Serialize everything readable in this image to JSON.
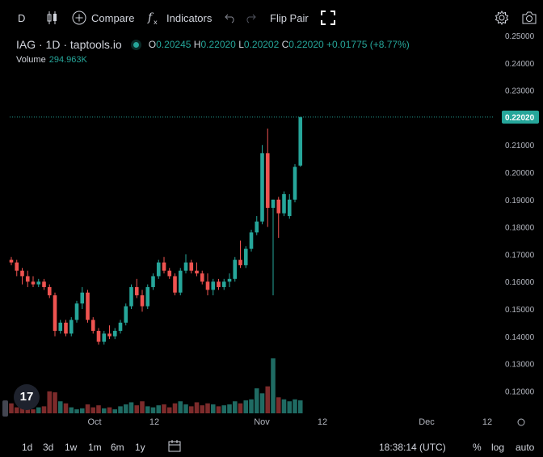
{
  "toolbar": {
    "interval": "D",
    "compare_label": "Compare",
    "indicators_label": "Indicators",
    "flip_pair_label": "Flip Pair"
  },
  "legend": {
    "symbol": "IAG · 1D · taptools.io",
    "o_label": "O",
    "o_value": "0.20245",
    "h_label": "H",
    "h_value": "0.22020",
    "l_label": "L",
    "l_value": "0.20202",
    "c_label": "C",
    "c_value": "0.22020",
    "change": "+0.01775 (+8.77%)",
    "volume_label": "Volume",
    "volume_value": "294.963K"
  },
  "colors": {
    "up": "#26a69a",
    "down": "#ef5350",
    "up_vol": "#1f6b63",
    "down_vol": "#7d2b2b"
  },
  "chart_data": {
    "type": "candlestick",
    "price_axis_ticks": [
      "0.25000",
      "0.24000",
      "0.23000",
      "0.22000",
      "0.21000",
      "0.20000",
      "0.19000",
      "0.18000",
      "0.17000",
      "0.16000",
      "0.15000",
      "0.14000",
      "0.13000",
      "0.12000"
    ],
    "last_price": "0.22020",
    "time_axis_ticks": [
      "Oct",
      "12",
      "Nov",
      "12",
      "Dec",
      "12"
    ],
    "candles": [
      {
        "o": 0.168,
        "h": 0.169,
        "l": 0.166,
        "c": 0.167
      },
      {
        "o": 0.167,
        "h": 0.168,
        "l": 0.162,
        "c": 0.164
      },
      {
        "o": 0.164,
        "h": 0.165,
        "l": 0.159,
        "c": 0.162
      },
      {
        "o": 0.162,
        "h": 0.164,
        "l": 0.158,
        "c": 0.16
      },
      {
        "o": 0.16,
        "h": 0.162,
        "l": 0.158,
        "c": 0.159
      },
      {
        "o": 0.159,
        "h": 0.161,
        "l": 0.158,
        "c": 0.16
      },
      {
        "o": 0.16,
        "h": 0.161,
        "l": 0.157,
        "c": 0.158
      },
      {
        "o": 0.158,
        "h": 0.159,
        "l": 0.154,
        "c": 0.155
      },
      {
        "o": 0.155,
        "h": 0.156,
        "l": 0.14,
        "c": 0.142
      },
      {
        "o": 0.142,
        "h": 0.146,
        "l": 0.141,
        "c": 0.145
      },
      {
        "o": 0.145,
        "h": 0.146,
        "l": 0.14,
        "c": 0.141
      },
      {
        "o": 0.141,
        "h": 0.147,
        "l": 0.14,
        "c": 0.146
      },
      {
        "o": 0.146,
        "h": 0.153,
        "l": 0.145,
        "c": 0.152
      },
      {
        "o": 0.152,
        "h": 0.158,
        "l": 0.15,
        "c": 0.156
      },
      {
        "o": 0.156,
        "h": 0.157,
        "l": 0.145,
        "c": 0.146
      },
      {
        "o": 0.146,
        "h": 0.147,
        "l": 0.141,
        "c": 0.142
      },
      {
        "o": 0.142,
        "h": 0.143,
        "l": 0.137,
        "c": 0.138
      },
      {
        "o": 0.138,
        "h": 0.142,
        "l": 0.137,
        "c": 0.141
      },
      {
        "o": 0.141,
        "h": 0.144,
        "l": 0.139,
        "c": 0.14
      },
      {
        "o": 0.14,
        "h": 0.143,
        "l": 0.139,
        "c": 0.142
      },
      {
        "o": 0.142,
        "h": 0.146,
        "l": 0.141,
        "c": 0.145
      },
      {
        "o": 0.145,
        "h": 0.152,
        "l": 0.144,
        "c": 0.151
      },
      {
        "o": 0.151,
        "h": 0.159,
        "l": 0.15,
        "c": 0.158
      },
      {
        "o": 0.158,
        "h": 0.161,
        "l": 0.154,
        "c": 0.155
      },
      {
        "o": 0.155,
        "h": 0.157,
        "l": 0.149,
        "c": 0.151
      },
      {
        "o": 0.151,
        "h": 0.159,
        "l": 0.15,
        "c": 0.158
      },
      {
        "o": 0.158,
        "h": 0.163,
        "l": 0.157,
        "c": 0.162
      },
      {
        "o": 0.162,
        "h": 0.168,
        "l": 0.161,
        "c": 0.167
      },
      {
        "o": 0.167,
        "h": 0.169,
        "l": 0.163,
        "c": 0.164
      },
      {
        "o": 0.164,
        "h": 0.165,
        "l": 0.161,
        "c": 0.162
      },
      {
        "o": 0.162,
        "h": 0.163,
        "l": 0.155,
        "c": 0.156
      },
      {
        "o": 0.156,
        "h": 0.165,
        "l": 0.155,
        "c": 0.164
      },
      {
        "o": 0.164,
        "h": 0.17,
        "l": 0.163,
        "c": 0.167
      },
      {
        "o": 0.167,
        "h": 0.168,
        "l": 0.163,
        "c": 0.164
      },
      {
        "o": 0.164,
        "h": 0.167,
        "l": 0.162,
        "c": 0.163
      },
      {
        "o": 0.163,
        "h": 0.164,
        "l": 0.159,
        "c": 0.16
      },
      {
        "o": 0.16,
        "h": 0.163,
        "l": 0.155,
        "c": 0.157
      },
      {
        "o": 0.157,
        "h": 0.161,
        "l": 0.155,
        "c": 0.16
      },
      {
        "o": 0.16,
        "h": 0.161,
        "l": 0.157,
        "c": 0.158
      },
      {
        "o": 0.158,
        "h": 0.161,
        "l": 0.157,
        "c": 0.16
      },
      {
        "o": 0.16,
        "h": 0.163,
        "l": 0.158,
        "c": 0.161
      },
      {
        "o": 0.161,
        "h": 0.169,
        "l": 0.16,
        "c": 0.168
      },
      {
        "o": 0.168,
        "h": 0.175,
        "l": 0.165,
        "c": 0.166
      },
      {
        "o": 0.166,
        "h": 0.173,
        "l": 0.165,
        "c": 0.172
      },
      {
        "o": 0.172,
        "h": 0.179,
        "l": 0.171,
        "c": 0.178
      },
      {
        "o": 0.178,
        "h": 0.184,
        "l": 0.177,
        "c": 0.182
      },
      {
        "o": 0.182,
        "h": 0.21,
        "l": 0.181,
        "c": 0.207
      },
      {
        "o": 0.207,
        "h": 0.216,
        "l": 0.18,
        "c": 0.187
      },
      {
        "o": 0.187,
        "h": 0.19,
        "l": 0.155,
        "c": 0.19
      },
      {
        "o": 0.19,
        "h": 0.191,
        "l": 0.176,
        "c": 0.185
      },
      {
        "o": 0.185,
        "h": 0.193,
        "l": 0.184,
        "c": 0.192
      },
      {
        "o": 0.184,
        "h": 0.192,
        "l": 0.183,
        "c": 0.19
      },
      {
        "o": 0.19,
        "h": 0.203,
        "l": 0.189,
        "c": 0.202
      },
      {
        "o": 0.20245,
        "h": 0.2202,
        "l": 0.20202,
        "c": 0.2202
      }
    ],
    "volumes": [
      0.1,
      0.06,
      0.07,
      0.05,
      0.04,
      0.06,
      0.07,
      0.22,
      0.21,
      0.12,
      0.1,
      0.06,
      0.04,
      0.05,
      0.09,
      0.06,
      0.08,
      0.05,
      0.06,
      0.04,
      0.07,
      0.09,
      0.11,
      0.08,
      0.12,
      0.07,
      0.06,
      0.08,
      0.09,
      0.06,
      0.1,
      0.12,
      0.09,
      0.07,
      0.11,
      0.08,
      0.1,
      0.09,
      0.07,
      0.08,
      0.09,
      0.12,
      0.1,
      0.13,
      0.14,
      0.25,
      0.2,
      0.27,
      0.55,
      0.16,
      0.14,
      0.12,
      0.14,
      0.13
    ]
  },
  "bottom": {
    "ranges": [
      "1d",
      "3d",
      "1w",
      "1m",
      "6m",
      "1y"
    ],
    "time": "18:38:14 (UTC)",
    "percent": "%",
    "log": "log",
    "auto": "auto"
  }
}
